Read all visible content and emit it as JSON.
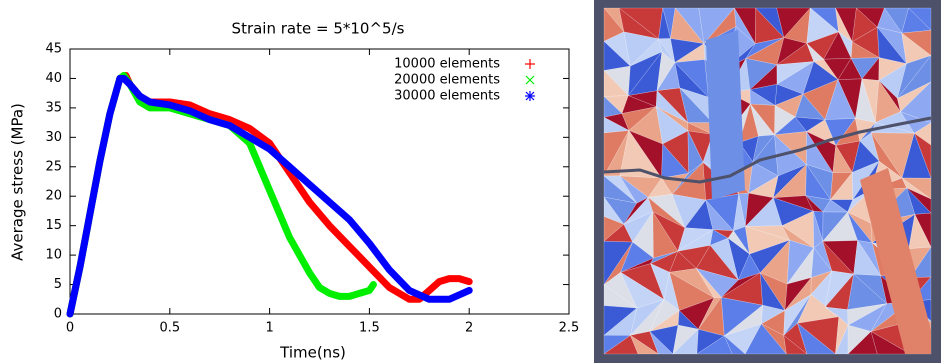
{
  "chart_data": {
    "type": "line",
    "title": "Strain rate = 5*10^5/s",
    "x_label": "Time(ns)",
    "y_label": "Average stress (MPa)",
    "xlim": [
      0,
      2.5
    ],
    "xticks": [
      0,
      0.5,
      1,
      1.5,
      2,
      2.5
    ],
    "ylim": [
      0,
      45
    ],
    "yticks": [
      0,
      5,
      10,
      15,
      20,
      25,
      30,
      35,
      40,
      45
    ],
    "legend": "upper right",
    "series": [
      {
        "name": "10000 elements",
        "color": "#ff0000",
        "marker": "+",
        "x": [
          0,
          0.05,
          0.1,
          0.15,
          0.2,
          0.25,
          0.28,
          0.3,
          0.35,
          0.4,
          0.5,
          0.6,
          0.7,
          0.8,
          0.9,
          1.0,
          1.1,
          1.2,
          1.3,
          1.4,
          1.5,
          1.6,
          1.7,
          1.75,
          1.8,
          1.85,
          1.9,
          1.95,
          2.0
        ],
        "values": [
          0,
          8,
          17,
          26,
          34,
          40,
          40.5,
          39,
          37,
          36,
          36,
          35.5,
          34,
          33,
          31.5,
          29,
          24,
          19,
          15,
          11.5,
          8,
          4.5,
          2.5,
          2.5,
          4,
          5.5,
          6,
          6,
          5.5
        ]
      },
      {
        "name": "20000 elements",
        "color": "#00ee00",
        "marker": "x",
        "x": [
          0,
          0.05,
          0.1,
          0.15,
          0.2,
          0.25,
          0.27,
          0.3,
          0.35,
          0.4,
          0.5,
          0.6,
          0.7,
          0.8,
          0.9,
          1.0,
          1.1,
          1.2,
          1.25,
          1.3,
          1.35,
          1.4,
          1.45,
          1.5,
          1.52
        ],
        "values": [
          0,
          8,
          17,
          26,
          34,
          40,
          40.5,
          39,
          36,
          35,
          35,
          34,
          33,
          32,
          29,
          21,
          13,
          7,
          4.5,
          3.5,
          3,
          3,
          3.5,
          4,
          5
        ]
      },
      {
        "name": "30000 elements",
        "color": "#0000ff",
        "marker": "*",
        "x": [
          0,
          0.05,
          0.1,
          0.15,
          0.2,
          0.25,
          0.27,
          0.3,
          0.35,
          0.4,
          0.5,
          0.6,
          0.7,
          0.8,
          0.9,
          1.0,
          1.1,
          1.2,
          1.3,
          1.4,
          1.5,
          1.6,
          1.7,
          1.8,
          1.9,
          2.0
        ],
        "values": [
          0,
          8,
          17,
          26,
          34,
          40,
          40,
          39,
          37,
          36,
          35.5,
          34.5,
          33,
          32,
          30,
          28,
          25,
          22,
          19,
          16,
          12,
          7.5,
          4,
          2.5,
          2.5,
          4
        ]
      }
    ]
  }
}
